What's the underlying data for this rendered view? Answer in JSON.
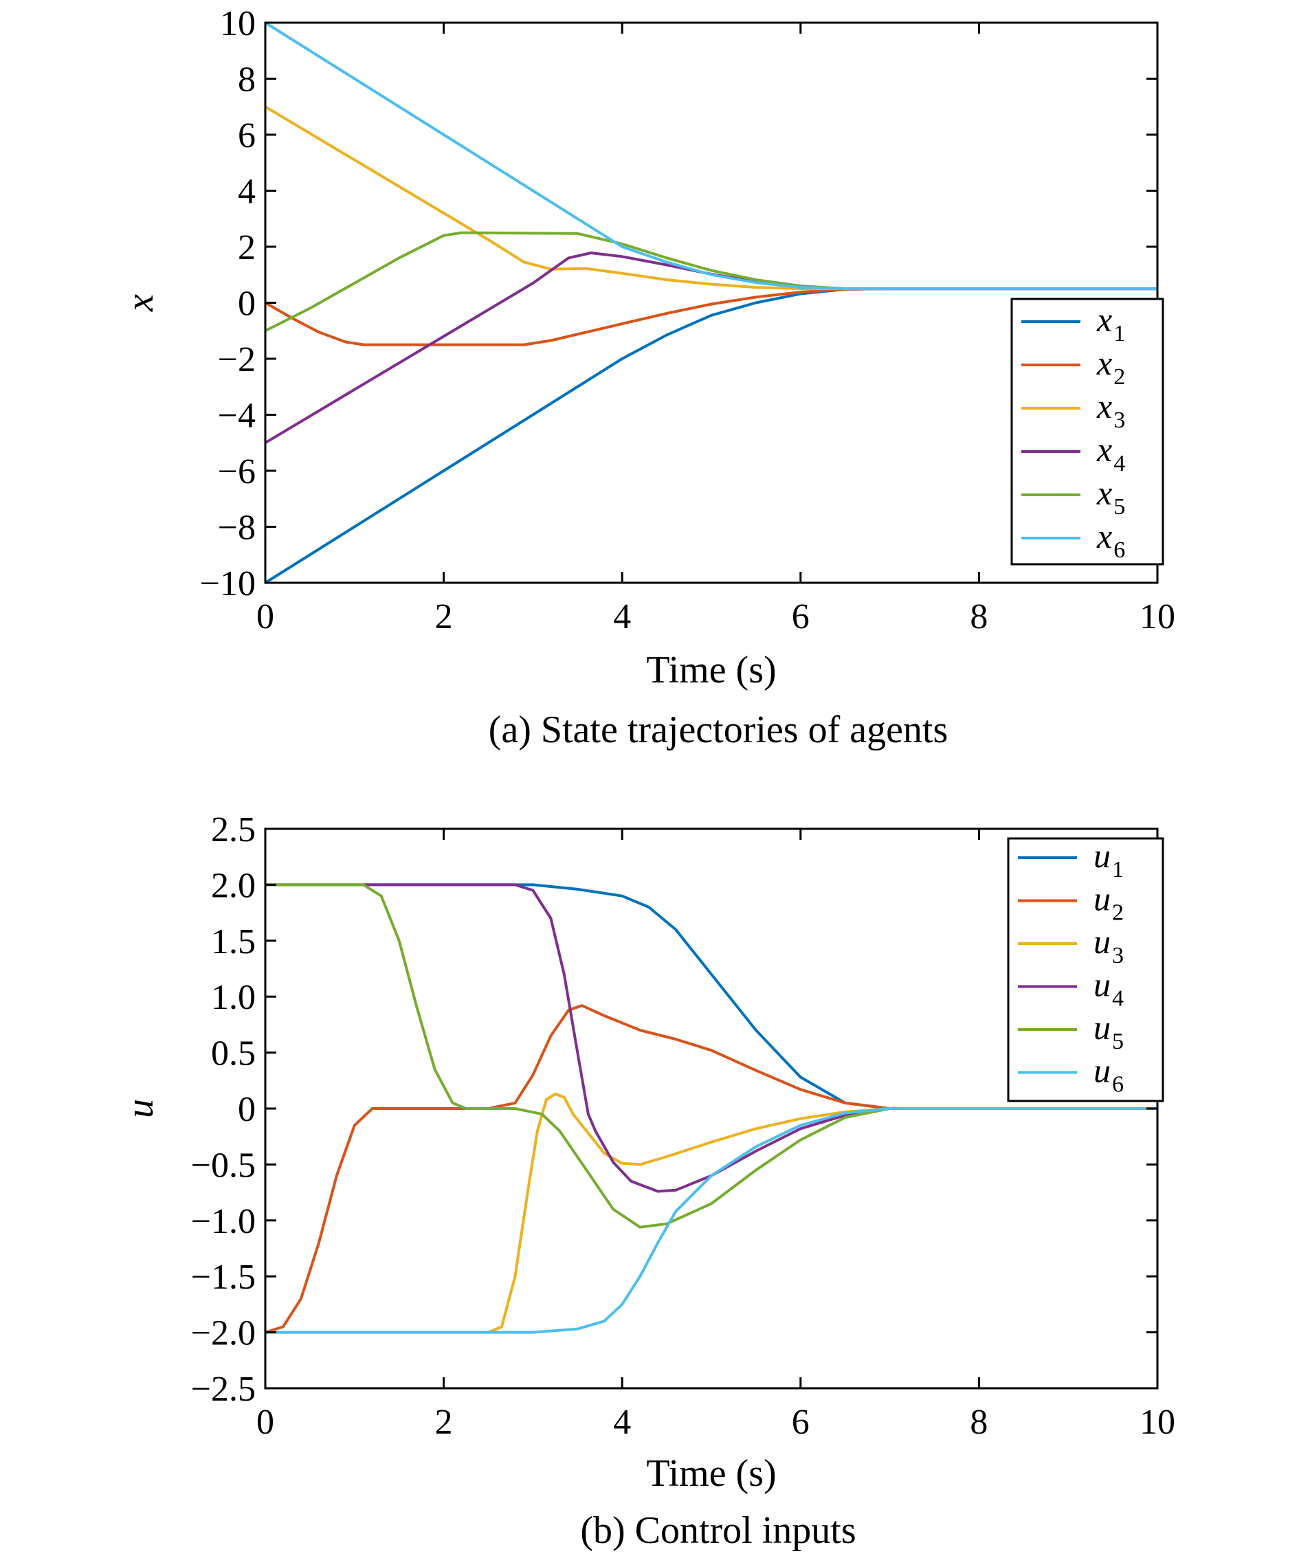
{
  "chart_data": [
    {
      "type": "line",
      "caption": "(a) State trajectories of agents",
      "xlabel": "Time (s)",
      "ylabel": "x",
      "xlim": [
        0,
        10
      ],
      "ylim": [
        -10,
        10
      ],
      "xticks": [
        0,
        2,
        4,
        6,
        8,
        10
      ],
      "xtick_labels": [
        "0",
        "2",
        "4",
        "6",
        "8",
        "10"
      ],
      "yticks": [
        -10,
        -8,
        -6,
        -4,
        -2,
        0,
        2,
        4,
        6,
        8,
        10
      ],
      "ytick_labels": [
        "−10",
        "−8",
        "−6",
        "−4",
        "−2",
        "0",
        "2",
        "4",
        "6",
        "8",
        "10"
      ],
      "grid": false,
      "legend_position": "right",
      "series": [
        {
          "name": "x",
          "sub": "1",
          "color": "#0072BD",
          "points": [
            [
              0,
              -10
            ],
            [
              1,
              -8
            ],
            [
              2,
              -6
            ],
            [
              3,
              -4
            ],
            [
              4,
              -2
            ],
            [
              4.5,
              -1.15
            ],
            [
              5,
              -0.45
            ],
            [
              5.5,
              0
            ],
            [
              6,
              0.32
            ],
            [
              6.5,
              0.48
            ],
            [
              7,
              0.5
            ],
            [
              10,
              0.5
            ]
          ]
        },
        {
          "name": "x",
          "sub": "2",
          "color": "#D95319",
          "points": [
            [
              0,
              0
            ],
            [
              0.3,
              -0.55
            ],
            [
              0.6,
              -1.05
            ],
            [
              0.9,
              -1.4
            ],
            [
              1.1,
              -1.5
            ],
            [
              2.9,
              -1.5
            ],
            [
              3.2,
              -1.35
            ],
            [
              3.6,
              -1.05
            ],
            [
              4,
              -0.75
            ],
            [
              4.5,
              -0.38
            ],
            [
              5,
              -0.05
            ],
            [
              5.5,
              0.2
            ],
            [
              6,
              0.38
            ],
            [
              6.5,
              0.48
            ],
            [
              7,
              0.5
            ],
            [
              10,
              0.5
            ]
          ]
        },
        {
          "name": "x",
          "sub": "3",
          "color": "#EDB120",
          "points": [
            [
              0,
              7
            ],
            [
              1,
              5.1
            ],
            [
              2,
              3.2
            ],
            [
              2.5,
              2.25
            ],
            [
              2.9,
              1.45
            ],
            [
              3.2,
              1.2
            ],
            [
              3.6,
              1.22
            ],
            [
              4,
              1.05
            ],
            [
              4.5,
              0.82
            ],
            [
              5,
              0.66
            ],
            [
              5.5,
              0.55
            ],
            [
              6,
              0.5
            ],
            [
              10,
              0.5
            ]
          ]
        },
        {
          "name": "x",
          "sub": "4",
          "color": "#7E2F8E",
          "points": [
            [
              0,
              -5
            ],
            [
              1,
              -3.1
            ],
            [
              2,
              -1.2
            ],
            [
              3,
              0.7
            ],
            [
              3.4,
              1.6
            ],
            [
              3.65,
              1.78
            ],
            [
              4,
              1.65
            ],
            [
              4.5,
              1.35
            ],
            [
              5,
              1.02
            ],
            [
              5.5,
              0.75
            ],
            [
              6,
              0.58
            ],
            [
              6.5,
              0.5
            ],
            [
              10,
              0.5
            ]
          ]
        },
        {
          "name": "x",
          "sub": "5",
          "color": "#77AC30",
          "points": [
            [
              0,
              -1
            ],
            [
              0.5,
              -0.2
            ],
            [
              1,
              0.7
            ],
            [
              1.5,
              1.6
            ],
            [
              2,
              2.4
            ],
            [
              2.2,
              2.5
            ],
            [
              3.5,
              2.47
            ],
            [
              4,
              2.1
            ],
            [
              4.5,
              1.6
            ],
            [
              5,
              1.15
            ],
            [
              5.5,
              0.82
            ],
            [
              6,
              0.6
            ],
            [
              6.5,
              0.5
            ],
            [
              10,
              0.5
            ]
          ]
        },
        {
          "name": "x",
          "sub": "6",
          "color": "#4DBEEE",
          "points": [
            [
              0,
              10
            ],
            [
              1,
              8
            ],
            [
              2,
              6
            ],
            [
              3,
              4
            ],
            [
              4,
              2
            ],
            [
              4.5,
              1.45
            ],
            [
              5,
              1
            ],
            [
              5.5,
              0.72
            ],
            [
              6,
              0.55
            ],
            [
              6.5,
              0.5
            ],
            [
              10,
              0.5
            ]
          ]
        }
      ]
    },
    {
      "type": "line",
      "caption": "(b) Control inputs",
      "xlabel": "Time (s)",
      "ylabel": "u",
      "xlim": [
        0,
        10
      ],
      "ylim": [
        -2.5,
        2.5
      ],
      "xticks": [
        0,
        2,
        4,
        6,
        8,
        10
      ],
      "xtick_labels": [
        "0",
        "2",
        "4",
        "6",
        "8",
        "10"
      ],
      "yticks": [
        -2.5,
        -2.0,
        -1.5,
        -1.0,
        -0.5,
        0,
        0.5,
        1.0,
        1.5,
        2.0,
        2.5
      ],
      "ytick_labels": [
        "−2.5",
        "−2.0",
        "−1.5",
        "−1.0",
        "−0.5",
        "0",
        "0.5",
        "1.0",
        "1.5",
        "2.0",
        "2.5"
      ],
      "grid": false,
      "legend_position": "top-right",
      "series": [
        {
          "name": "u",
          "sub": "1",
          "color": "#0072BD",
          "points": [
            [
              0,
              2
            ],
            [
              3,
              2
            ],
            [
              3.5,
              1.96
            ],
            [
              4,
              1.9
            ],
            [
              4.3,
              1.8
            ],
            [
              4.6,
              1.6
            ],
            [
              5,
              1.2
            ],
            [
              5.5,
              0.7
            ],
            [
              6,
              0.28
            ],
            [
              6.5,
              0.05
            ],
            [
              7,
              0
            ],
            [
              10,
              0
            ]
          ]
        },
        {
          "name": "u",
          "sub": "2",
          "color": "#D95319",
          "points": [
            [
              0,
              -2
            ],
            [
              0.2,
              -1.95
            ],
            [
              0.4,
              -1.7
            ],
            [
              0.6,
              -1.2
            ],
            [
              0.8,
              -0.6
            ],
            [
              1,
              -0.15
            ],
            [
              1.2,
              0
            ],
            [
              2.5,
              0
            ],
            [
              2.8,
              0.05
            ],
            [
              3,
              0.3
            ],
            [
              3.2,
              0.65
            ],
            [
              3.4,
              0.88
            ],
            [
              3.55,
              0.92
            ],
            [
              3.8,
              0.83
            ],
            [
              4.2,
              0.7
            ],
            [
              4.6,
              0.62
            ],
            [
              5,
              0.52
            ],
            [
              5.5,
              0.34
            ],
            [
              6,
              0.17
            ],
            [
              6.5,
              0.05
            ],
            [
              7,
              0
            ],
            [
              10,
              0
            ]
          ]
        },
        {
          "name": "u",
          "sub": "3",
          "color": "#EDB120",
          "points": [
            [
              0,
              -2
            ],
            [
              2.5,
              -2
            ],
            [
              2.65,
              -1.95
            ],
            [
              2.8,
              -1.5
            ],
            [
              2.95,
              -0.7
            ],
            [
              3.05,
              -0.2
            ],
            [
              3.15,
              0.08
            ],
            [
              3.25,
              0.13
            ],
            [
              3.35,
              0.1
            ],
            [
              3.45,
              -0.05
            ],
            [
              3.6,
              -0.2
            ],
            [
              3.8,
              -0.4
            ],
            [
              4,
              -0.49
            ],
            [
              4.2,
              -0.5
            ],
            [
              4.5,
              -0.43
            ],
            [
              5,
              -0.3
            ],
            [
              5.5,
              -0.18
            ],
            [
              6,
              -0.09
            ],
            [
              6.5,
              -0.03
            ],
            [
              7,
              0
            ],
            [
              10,
              0
            ]
          ]
        },
        {
          "name": "u",
          "sub": "4",
          "color": "#7E2F8E",
          "points": [
            [
              0,
              2
            ],
            [
              2.8,
              2
            ],
            [
              3,
              1.95
            ],
            [
              3.2,
              1.7
            ],
            [
              3.35,
              1.2
            ],
            [
              3.5,
              0.5
            ],
            [
              3.62,
              -0.05
            ],
            [
              3.7,
              -0.2
            ],
            [
              3.9,
              -0.48
            ],
            [
              4.1,
              -0.65
            ],
            [
              4.4,
              -0.74
            ],
            [
              4.6,
              -0.73
            ],
            [
              5,
              -0.6
            ],
            [
              5.5,
              -0.38
            ],
            [
              6,
              -0.18
            ],
            [
              6.5,
              -0.06
            ],
            [
              7,
              0
            ],
            [
              10,
              0
            ]
          ]
        },
        {
          "name": "u",
          "sub": "5",
          "color": "#77AC30",
          "points": [
            [
              0,
              2
            ],
            [
              1.1,
              2
            ],
            [
              1.3,
              1.9
            ],
            [
              1.5,
              1.5
            ],
            [
              1.7,
              0.9
            ],
            [
              1.9,
              0.35
            ],
            [
              2.1,
              0.05
            ],
            [
              2.25,
              0
            ],
            [
              2.8,
              0
            ],
            [
              3.1,
              -0.05
            ],
            [
              3.3,
              -0.2
            ],
            [
              3.6,
              -0.55
            ],
            [
              3.9,
              -0.9
            ],
            [
              4.2,
              -1.06
            ],
            [
              4.5,
              -1.03
            ],
            [
              5,
              -0.85
            ],
            [
              5.5,
              -0.55
            ],
            [
              6,
              -0.28
            ],
            [
              6.5,
              -0.08
            ],
            [
              7,
              0
            ],
            [
              10,
              0
            ]
          ]
        },
        {
          "name": "u",
          "sub": "6",
          "color": "#4DBEEE",
          "points": [
            [
              0,
              -2
            ],
            [
              3,
              -2
            ],
            [
              3.5,
              -1.97
            ],
            [
              3.8,
              -1.9
            ],
            [
              4,
              -1.75
            ],
            [
              4.2,
              -1.5
            ],
            [
              4.4,
              -1.2
            ],
            [
              4.6,
              -0.92
            ],
            [
              5,
              -0.6
            ],
            [
              5.5,
              -0.34
            ],
            [
              6,
              -0.15
            ],
            [
              6.5,
              -0.04
            ],
            [
              7,
              0
            ],
            [
              10,
              0
            ]
          ]
        }
      ]
    }
  ]
}
